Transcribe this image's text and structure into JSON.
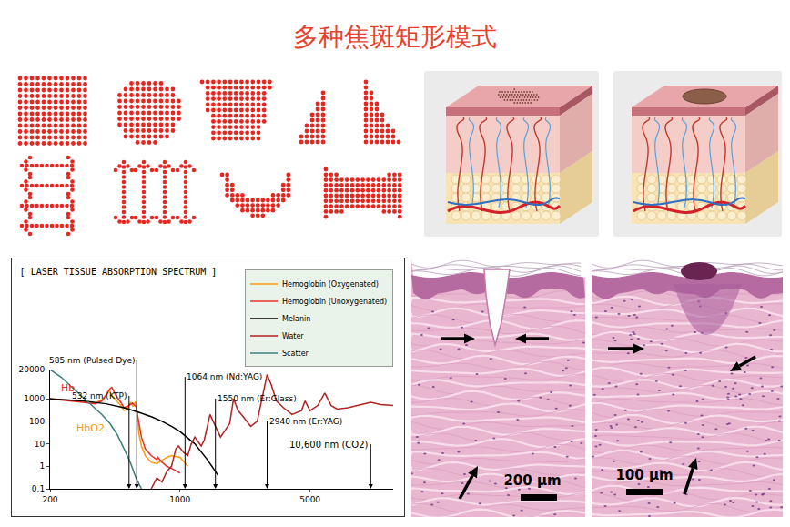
{
  "title": "多种焦斑矩形模式",
  "chart_data": {
    "type": "line",
    "title": "[ LASER TISSUE ABSORPTION SPECTRUM ]",
    "log": true,
    "xlim": [
      200,
      14000
    ],
    "xticks": [
      200,
      1000,
      5000
    ],
    "ylim": [
      0.1,
      20000
    ],
    "yticks": [
      0.1,
      1,
      10,
      100,
      1000,
      20000
    ],
    "grid": false,
    "legend": "top right",
    "visible_band": [
      400,
      700
    ],
    "series": [
      {
        "name": "Hemoglobin (Oxygenated)",
        "color": "#f39c12",
        "label": {
          "text": "HbO2",
          "x": 330,
          "y": 50
        },
        "x": [
          200,
          250,
          300,
          350,
          380,
          400,
          415,
          430,
          450,
          480,
          500,
          520,
          542,
          560,
          577,
          590,
          600,
          620,
          650,
          700,
          750,
          800,
          850,
          900,
          950,
          1000,
          1100
        ],
        "values": [
          1000,
          900,
          800,
          650,
          900,
          1500,
          2500,
          1400,
          900,
          500,
          300,
          350,
          700,
          450,
          750,
          200,
          30,
          8,
          3,
          1.5,
          1.3,
          1.8,
          2.5,
          3,
          2.8,
          2.5,
          1
        ]
      },
      {
        "name": "Hemoglobin (Unoxygenated)",
        "color": "#e8302a",
        "label": {
          "text": "Hb",
          "x": 250,
          "y": 3000
        },
        "x": [
          200,
          250,
          300,
          350,
          380,
          400,
          420,
          430,
          450,
          480,
          500,
          530,
          555,
          580,
          600,
          620,
          650,
          700,
          750,
          760,
          800,
          850,
          900,
          1000
        ],
        "values": [
          1000,
          850,
          700,
          600,
          800,
          1400,
          2800,
          3200,
          1500,
          700,
          400,
          500,
          650,
          450,
          80,
          20,
          6,
          3,
          2,
          2.5,
          1.5,
          1,
          0.8,
          0.5
        ]
      },
      {
        "name": "Melanin",
        "color": "#000000",
        "x": [
          200,
          250,
          300,
          400,
          500,
          600,
          700,
          800,
          900,
          1000,
          1200,
          1400,
          1600
        ],
        "values": [
          1000,
          900,
          800,
          600,
          400,
          250,
          160,
          100,
          60,
          35,
          10,
          2,
          0.4
        ]
      },
      {
        "name": "Water",
        "color": "#b22222",
        "x": [
          700,
          750,
          800,
          850,
          900,
          950,
          980,
          1050,
          1100,
          1150,
          1200,
          1300,
          1350,
          1450,
          1550,
          1650,
          1750,
          1850,
          1940,
          2050,
          2200,
          2400,
          2600,
          2800,
          2940,
          3100,
          3300,
          3600,
          4000,
          4500,
          4700,
          5000,
          5500,
          6000,
          6500,
          7000,
          8000,
          9000,
          10000,
          10600,
          12000,
          14000
        ],
        "values": [
          0.1,
          0.3,
          0.2,
          0.6,
          1,
          6,
          8,
          4,
          3,
          10,
          20,
          8,
          15,
          200,
          60,
          20,
          40,
          80,
          1000,
          300,
          150,
          60,
          100,
          1500,
          12000,
          4000,
          800,
          400,
          200,
          300,
          800,
          300,
          500,
          1800,
          500,
          350,
          400,
          500,
          600,
          700,
          550,
          500
        ]
      },
      {
        "name": "Scatter",
        "color": "#3e7f7a",
        "x": [
          200,
          230,
          260,
          300,
          340,
          380,
          420,
          460,
          500,
          540,
          580,
          620
        ],
        "values": [
          20000,
          9000,
          3500,
          1200,
          500,
          200,
          80,
          25,
          6,
          1.5,
          0.3,
          0.1
        ]
      }
    ],
    "annotations": [
      {
        "text": "585 nm (Pulsed Dye)",
        "x": 585
      },
      {
        "text": "532 nm (KTP)",
        "x": 532
      },
      {
        "text": "1064 nm (Nd:YAG)",
        "x": 1064
      },
      {
        "text": "1550 nm (Er:Glass)",
        "x": 1550
      },
      {
        "text": "2940 nm (Er:YAG)",
        "x": 2940
      },
      {
        "text": "10,600 nm (CO2)",
        "x": 10600
      }
    ]
  },
  "micrographs": [
    {
      "scale_bar": "200 μm"
    },
    {
      "scale_bar": "100 μm"
    }
  ]
}
